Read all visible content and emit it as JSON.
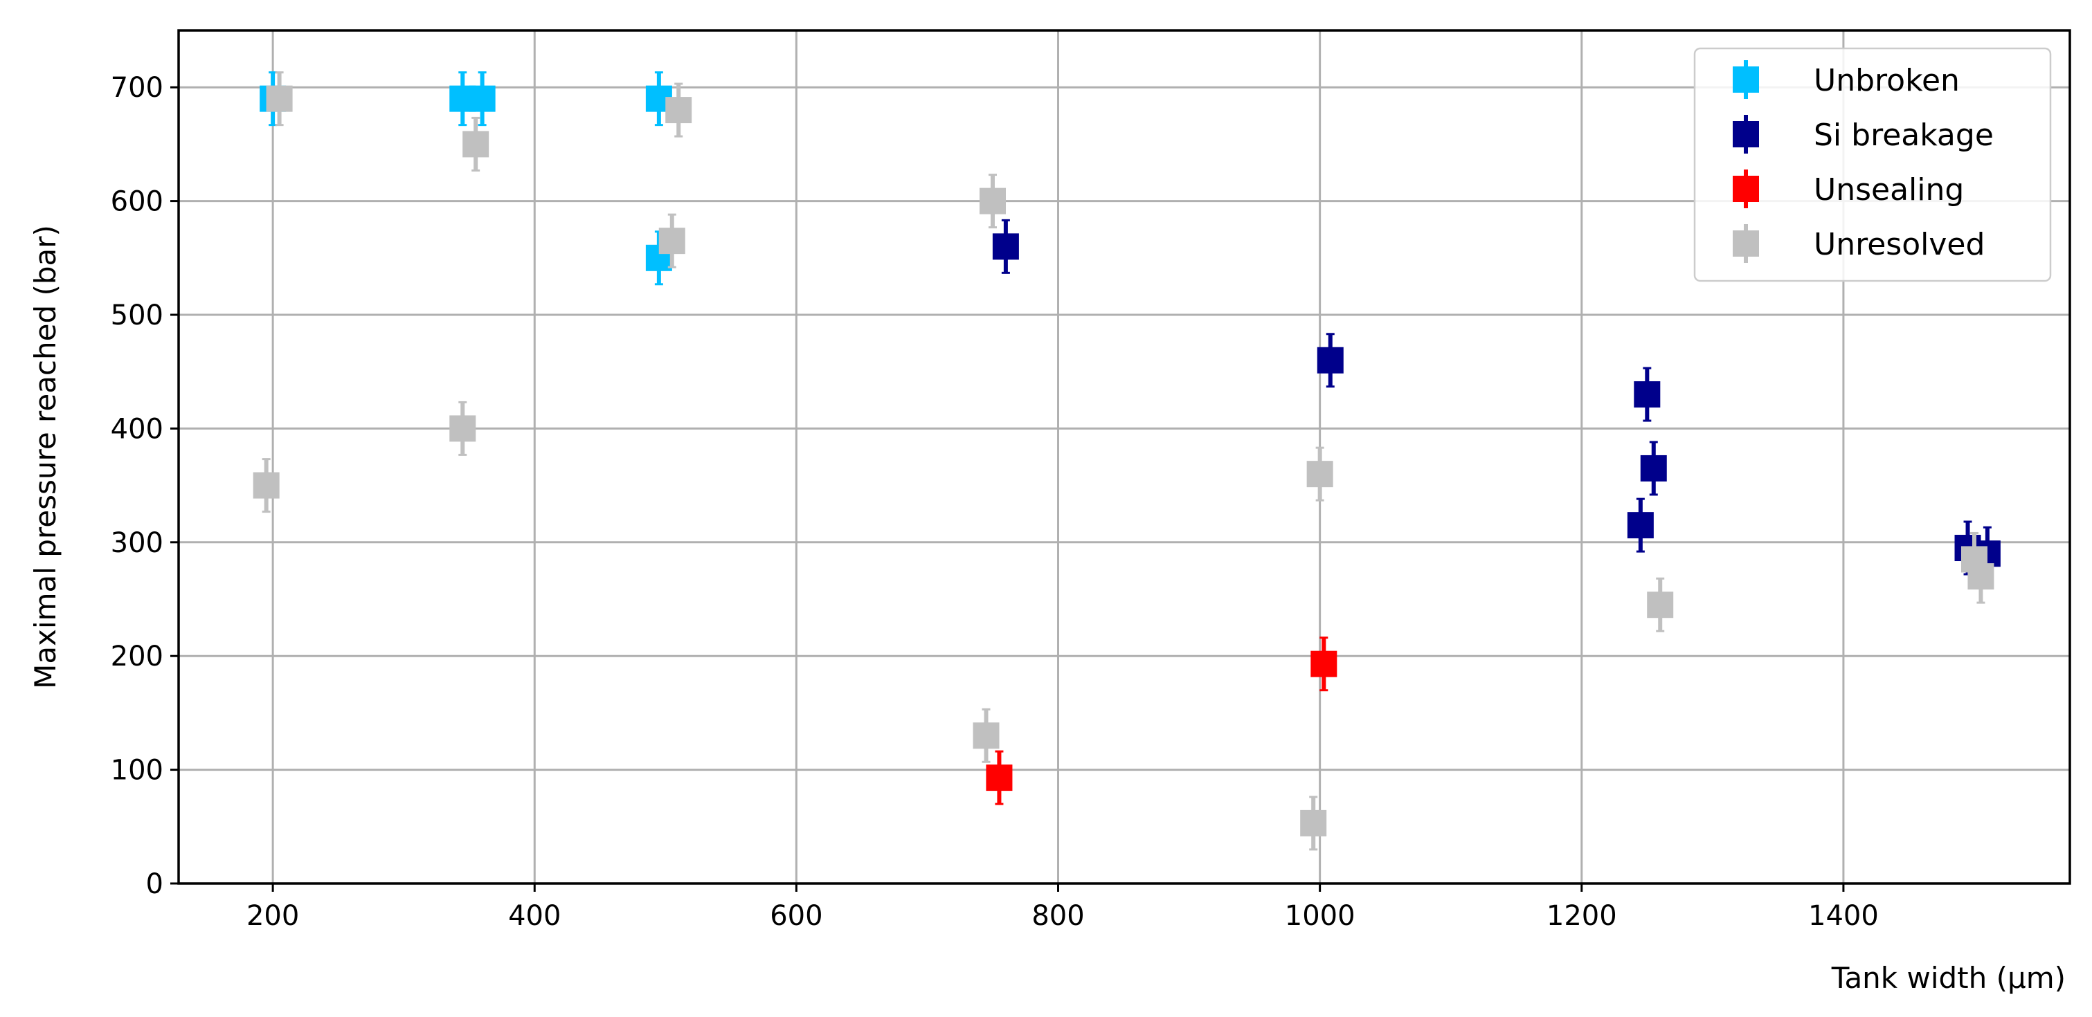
{
  "chart_data": {
    "type": "scatter",
    "xlabel": "Tank width (μm)",
    "ylabel": "Maximal pressure reached (bar)",
    "xlim": [
      128,
      1573
    ],
    "ylim": [
      0,
      750
    ],
    "xticks": [
      200,
      400,
      600,
      800,
      1000,
      1200,
      1400
    ],
    "yticks": [
      0,
      100,
      200,
      300,
      400,
      500,
      600,
      700
    ],
    "xtick_labels": [
      "200",
      "400",
      "600",
      "800",
      "1000",
      "1200",
      "1400"
    ],
    "ytick_labels": [
      "0",
      "100",
      "200",
      "300",
      "400",
      "500",
      "600",
      "700"
    ],
    "grid": true,
    "legend_position": "top-right",
    "marker": "square with vertical error bar",
    "series": [
      {
        "name": "Unbroken",
        "color": "#00bfff",
        "points": [
          {
            "x": 200,
            "y": 690
          },
          {
            "x": 345,
            "y": 690
          },
          {
            "x": 360,
            "y": 690
          },
          {
            "x": 495,
            "y": 690
          },
          {
            "x": 495,
            "y": 550
          }
        ]
      },
      {
        "name": "Si breakage",
        "color": "#00008b",
        "points": [
          {
            "x": 760,
            "y": 560
          },
          {
            "x": 1008,
            "y": 460
          },
          {
            "x": 1250,
            "y": 430
          },
          {
            "x": 1255,
            "y": 365
          },
          {
            "x": 1245,
            "y": 315
          },
          {
            "x": 1495,
            "y": 295
          },
          {
            "x": 1510,
            "y": 290
          }
        ]
      },
      {
        "name": "Unsealing",
        "color": "#ff0000",
        "points": [
          {
            "x": 755,
            "y": 93
          },
          {
            "x": 1003,
            "y": 193
          }
        ]
      },
      {
        "name": "Unresolved",
        "color": "#c0c0c0",
        "points": [
          {
            "x": 205,
            "y": 690
          },
          {
            "x": 195,
            "y": 350
          },
          {
            "x": 355,
            "y": 650
          },
          {
            "x": 345,
            "y": 400
          },
          {
            "x": 505,
            "y": 565
          },
          {
            "x": 510,
            "y": 680
          },
          {
            "x": 750,
            "y": 600
          },
          {
            "x": 745,
            "y": 130
          },
          {
            "x": 1000,
            "y": 360
          },
          {
            "x": 995,
            "y": 53
          },
          {
            "x": 1260,
            "y": 245
          },
          {
            "x": 1500,
            "y": 285
          },
          {
            "x": 1505,
            "y": 270
          }
        ]
      }
    ]
  }
}
